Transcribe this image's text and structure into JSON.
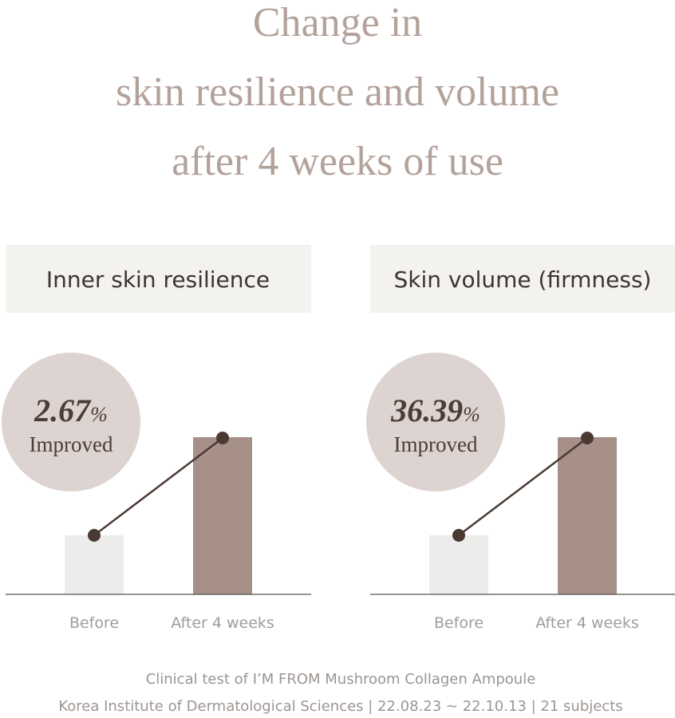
{
  "header": {
    "title_lines": [
      "Change in",
      "skin resilience and volume",
      "after 4 weeks of use"
    ]
  },
  "panels": [
    {
      "heading": "Inner skin resilience",
      "value": "2.67",
      "unit": "%",
      "caption": "Improved",
      "categories": [
        "Before",
        "After 4 weeks"
      ]
    },
    {
      "heading": "Skin volume (firmness)",
      "value": "36.39",
      "unit": "%",
      "caption": "Improved",
      "categories": [
        "Before",
        "After 4 weeks"
      ]
    }
  ],
  "footer": {
    "lines": [
      "Clinical test of I’M FROM Mushroom Collagen Ampoule",
      "Korea Institute of Dermatological Sciences | 22.08.23 ~ 22.10.13 | 21 subjects"
    ]
  }
}
